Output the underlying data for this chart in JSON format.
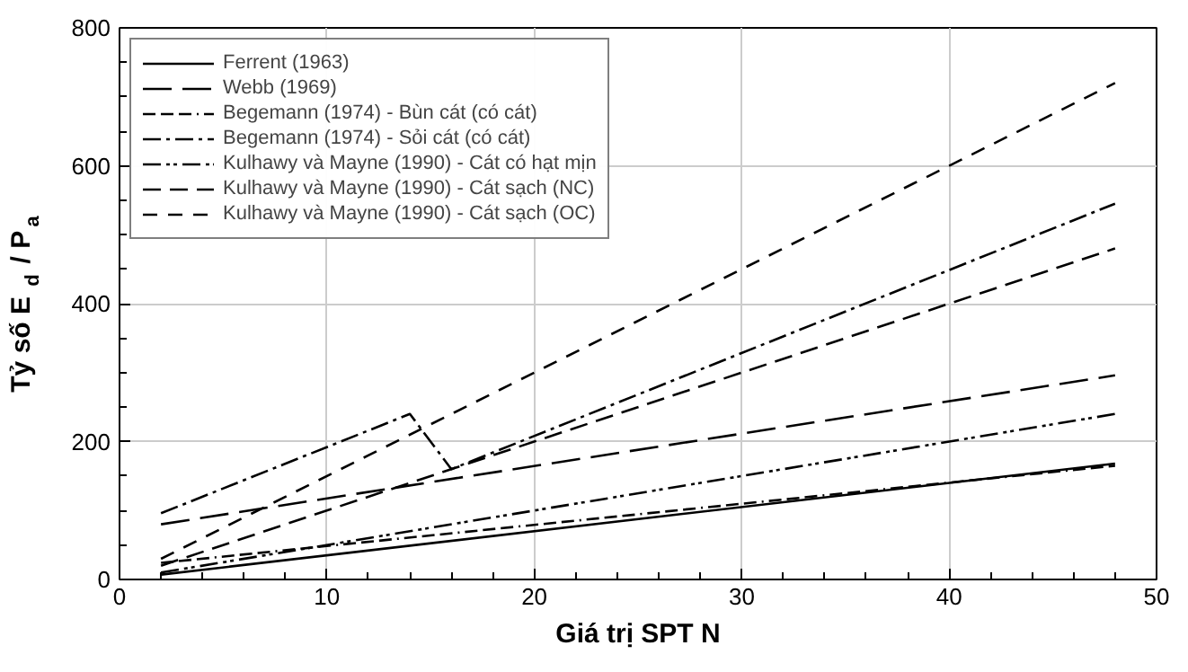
{
  "chart_data": {
    "type": "line",
    "xlabel": "Giá trị SPT N",
    "ylabel": "Tỷ số E$_{d}$ / P$_{a}$",
    "xlim": [
      0,
      50
    ],
    "ylim": [
      0,
      800
    ],
    "xticks": [
      0,
      10,
      20,
      30,
      40,
      50
    ],
    "yticks": [
      0,
      200,
      400,
      600,
      800
    ],
    "grid": true,
    "legend": "top left",
    "marker": "none",
    "series": [
      {
        "name": "Ferrent (1963)",
        "color": "#000000",
        "line_style": "solid",
        "x": [
          2,
          48
        ],
        "values": [
          7,
          168
        ]
      },
      {
        "name": "Webb (1969)",
        "color": "#000000",
        "line_style": "longdash",
        "x": [
          2,
          48
        ],
        "values": [
          80,
          296
        ]
      },
      {
        "name": "Begemann (1974) - Bùn cát (có cát)",
        "color": "#000000",
        "line_style": "dashdashdot",
        "x": [
          2,
          48
        ],
        "values": [
          24,
          165
        ]
      },
      {
        "name": "Begemann (1974) - Sỏi cát (có cát)",
        "color": "#000000",
        "line_style": "dashdot",
        "x": [
          2,
          14,
          16,
          48
        ],
        "values": [
          96,
          240,
          160,
          545
        ]
      },
      {
        "name": "Kulhawy và Mayne (1990) - Cát có hạt mịn",
        "color": "#000000",
        "line_style": "dashdotdot",
        "x": [
          2,
          48
        ],
        "values": [
          10,
          240
        ]
      },
      {
        "name": "Kulhawy và Mayne (1990) - Cát sạch (NC)",
        "color": "#000000",
        "line_style": "dashed",
        "x": [
          2,
          48
        ],
        "values": [
          20,
          480
        ]
      },
      {
        "name": "Kulhawy và Mayne (1990) - Cát sạch (OC)",
        "color": "#000000",
        "line_style": "mediumdash",
        "x": [
          2,
          48
        ],
        "values": [
          30,
          720
        ]
      }
    ]
  }
}
